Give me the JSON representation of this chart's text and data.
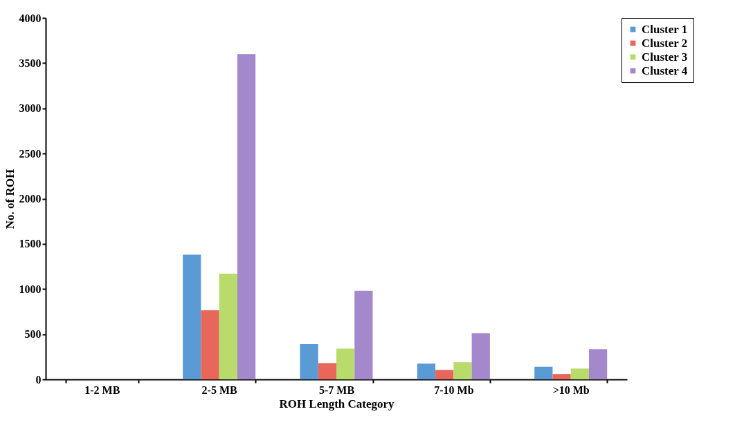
{
  "chart_data": {
    "type": "bar",
    "xlabel": "ROH Length Category",
    "ylabel": "No. of ROH",
    "categories": [
      "1-2 MB",
      "2-5 MB",
      "5-7 MB",
      "7-10 Mb",
      ">10 Mb"
    ],
    "series": [
      {
        "name": "Cluster 1",
        "color": "#5b9bd5",
        "values": [
          0,
          1380,
          390,
          175,
          140
        ]
      },
      {
        "name": "Cluster 2",
        "color": "#e8665a",
        "values": [
          0,
          765,
          180,
          105,
          60
        ]
      },
      {
        "name": "Cluster 3",
        "color": "#b8db6c",
        "values": [
          0,
          1170,
          340,
          190,
          120
        ]
      },
      {
        "name": "Cluster 4",
        "color": "#a488cc",
        "values": [
          0,
          3600,
          980,
          510,
          335
        ]
      }
    ],
    "ylim": [
      0,
      4000
    ],
    "yticks": [
      0,
      500,
      1000,
      1500,
      2000,
      2500,
      3000,
      3500,
      4000
    ],
    "grid": false,
    "legend": "top right"
  }
}
